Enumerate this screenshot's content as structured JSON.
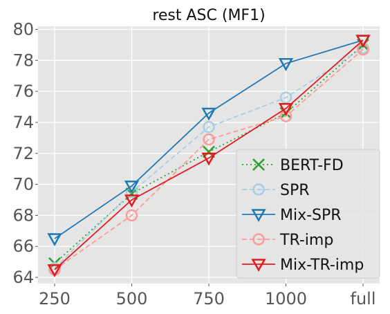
{
  "chart_data": {
    "type": "line",
    "title": "rest ASC (MF1)",
    "xlabel": "",
    "ylabel": "",
    "categories": [
      "250",
      "500",
      "750",
      "1000",
      "full"
    ],
    "ylim": [
      63.6,
      80.2
    ],
    "yticks": [
      64,
      66,
      68,
      70,
      72,
      74,
      76,
      78,
      80
    ],
    "grid": true,
    "legend_position": "lower-right",
    "series": [
      {
        "name": "BERT-FD",
        "values": [
          64.9,
          69.4,
          72.1,
          74.6,
          79.0
        ],
        "color": "#2ca02c",
        "linestyle": "dotted",
        "marker": "x"
      },
      {
        "name": "SPR",
        "values": [
          64.6,
          69.5,
          73.7,
          75.6,
          78.8
        ],
        "color": "#a6cee3",
        "linestyle": "dashed",
        "marker": "circle"
      },
      {
        "name": "Mix-SPR",
        "values": [
          66.5,
          69.9,
          74.6,
          77.8,
          79.3
        ],
        "color": "#1f78b4",
        "linestyle": "solid",
        "marker": "triangle-down"
      },
      {
        "name": "TR-imp",
        "values": [
          64.5,
          68.0,
          72.9,
          74.4,
          78.7
        ],
        "color": "#fb9a99",
        "linestyle": "dashed",
        "marker": "circle"
      },
      {
        "name": "Mix-TR-imp",
        "values": [
          64.5,
          69.0,
          71.7,
          74.9,
          79.3
        ],
        "color": "#e31a1c",
        "linestyle": "solid",
        "marker": "triangle-down"
      }
    ]
  }
}
